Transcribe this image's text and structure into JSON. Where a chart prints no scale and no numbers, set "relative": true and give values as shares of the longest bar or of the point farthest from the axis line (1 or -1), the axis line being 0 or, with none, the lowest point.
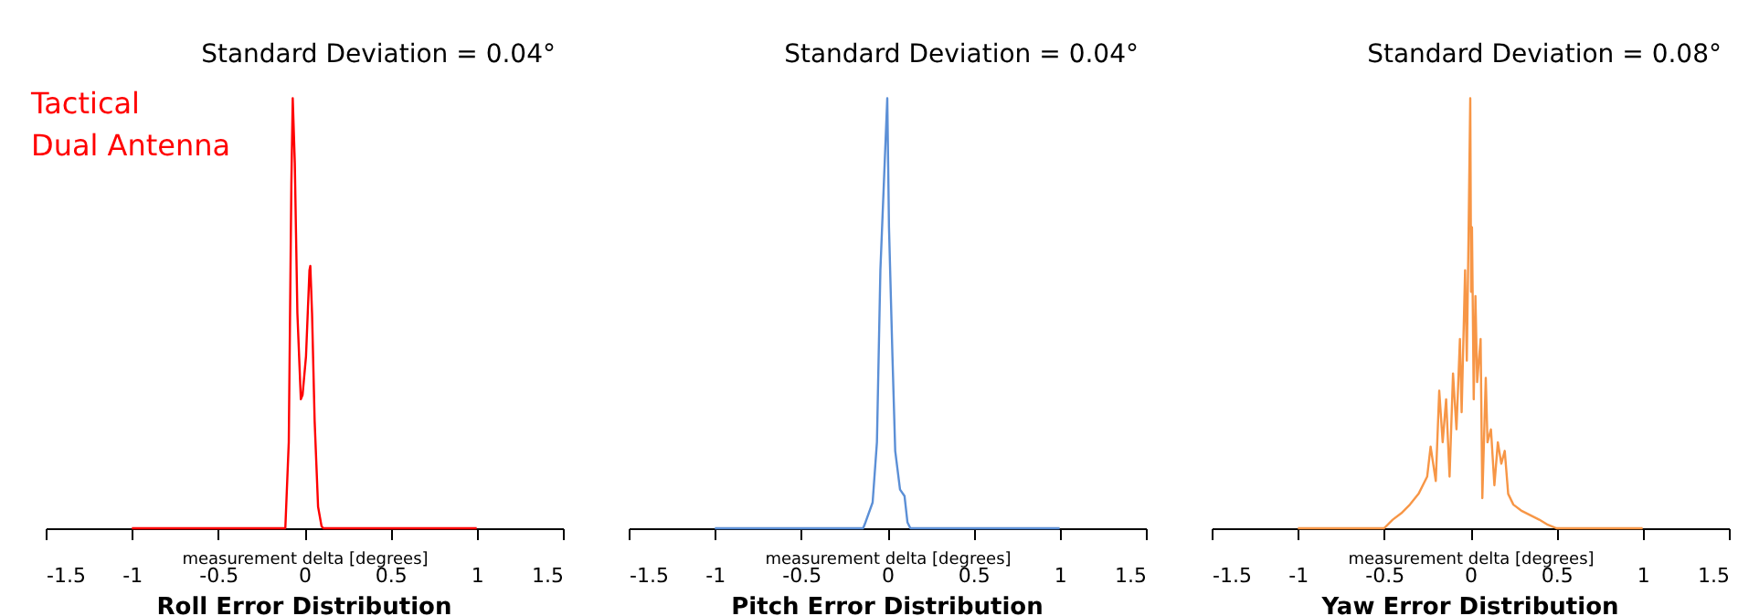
{
  "chart_data": [
    {
      "type": "line",
      "title": "Roll Error Distribution",
      "xlabel": "measurement delta [degrees]",
      "annotations": [
        "Tactical",
        "Dual Antenna",
        "Standard Deviation = 0.04°"
      ],
      "relative": true,
      "xlim": [
        -1.5,
        1.5
      ],
      "xticks": [
        -1.5,
        -1,
        -0.5,
        0,
        0.5,
        1,
        1.5
      ],
      "tick_labels": "x",
      "series": [
        {
          "color": "#ff0000",
          "x": [
            -1,
            -0.11,
            -0.09,
            -0.075,
            -0.067,
            -0.055,
            -0.04,
            -0.02,
            -0.01,
            0.01,
            0.03,
            0.035,
            0.045,
            0.06,
            0.08,
            0.1,
            0.11,
            1
          ],
          "values": [
            0,
            0,
            0.2,
            0.8,
            1,
            0.85,
            0.5,
            0.3,
            0.31,
            0.4,
            0.6,
            0.61,
            0.5,
            0.25,
            0.05,
            0.005,
            0,
            0
          ]
        }
      ]
    },
    {
      "type": "line",
      "title": "Pitch Error Distribution",
      "xlabel": "measurement delta [degrees]",
      "annotations": [
        "Standard Deviation = 0.04°"
      ],
      "relative": true,
      "xlim": [
        -1.5,
        1.5
      ],
      "xticks": [
        -1.5,
        -1,
        -0.5,
        0,
        0.5,
        1,
        1.5
      ],
      "tick_labels": "x",
      "series": [
        {
          "color": "#5b8fd6",
          "x": [
            -1,
            -0.14,
            -0.13,
            -0.085,
            -0.06,
            -0.04,
            -0.035,
            -0.02,
            0,
            0.01,
            0.03,
            0.046,
            0.074,
            0.1,
            0.117,
            0.134,
            1
          ],
          "values": [
            0,
            0,
            0.01,
            0.06,
            0.2,
            0.6,
            0.65,
            0.8,
            1,
            0.7,
            0.4,
            0.18,
            0.09,
            0.075,
            0.014,
            0,
            0
          ]
        }
      ]
    },
    {
      "type": "line",
      "title": "Yaw Error Distribution",
      "xlabel": "measurement delta [degrees]",
      "annotations": [
        "Standard Deviation = 0.08°"
      ],
      "relative": true,
      "xlim": [
        -1.5,
        1.5
      ],
      "xticks": [
        -1.5,
        -1,
        -0.5,
        0,
        0.5,
        1,
        1.5
      ],
      "tick_labels": "x",
      "series": [
        {
          "color": "#f79646",
          "x": [
            -1,
            -0.5,
            -0.45,
            -0.4,
            -0.35,
            -0.3,
            -0.25,
            -0.23,
            -0.2,
            -0.18,
            -0.16,
            -0.14,
            -0.12,
            -0.1,
            -0.08,
            -0.06,
            -0.05,
            -0.03,
            -0.02,
            -0.01,
            0,
            0.005,
            0.01,
            0.02,
            0.03,
            0.04,
            0.06,
            0.07,
            0.09,
            0.1,
            0.12,
            0.14,
            0.16,
            0.18,
            0.2,
            0.22,
            0.25,
            0.3,
            0.35,
            0.4,
            0.45,
            0.5,
            1
          ],
          "values": [
            0,
            0,
            0.02,
            0.035,
            0.055,
            0.08,
            0.12,
            0.19,
            0.11,
            0.32,
            0.2,
            0.3,
            0.12,
            0.36,
            0.23,
            0.44,
            0.27,
            0.6,
            0.39,
            0.68,
            1,
            0.55,
            0.7,
            0.3,
            0.54,
            0.34,
            0.44,
            0.07,
            0.35,
            0.2,
            0.23,
            0.1,
            0.2,
            0.15,
            0.18,
            0.08,
            0.055,
            0.04,
            0.03,
            0.02,
            0.008,
            0,
            0
          ]
        }
      ]
    }
  ]
}
